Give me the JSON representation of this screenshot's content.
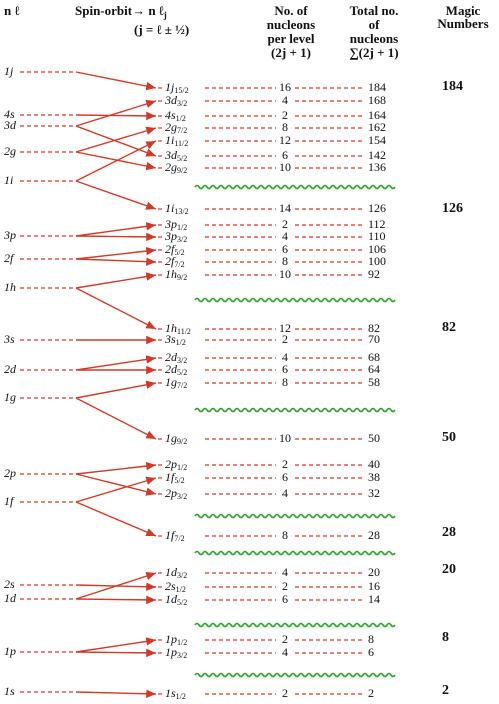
{
  "header": {
    "nl": "n ℓ",
    "spin_orbit": "Spin-orbit→",
    "nlj": "n ℓ",
    "nlj_sub": "j",
    "jrule": "(j = ℓ ± ½)",
    "per_level": [
      "No. of",
      "nucleons",
      "per level",
      "(2j + 1)"
    ],
    "total": [
      "Total no.",
      "of",
      "nucleons",
      "∑(2j + 1)"
    ],
    "magic": [
      "Magic",
      "Numbers"
    ]
  },
  "left_levels": [
    "1j",
    "4s",
    "3d",
    "2g",
    "1i",
    "3p",
    "2f",
    "1h",
    "3s",
    "2d",
    "1g",
    "2p",
    "1f",
    "2s",
    "1d",
    "1p",
    "1s"
  ],
  "right_levels": [
    {
      "orbital": "1j",
      "j": "15/2",
      "count": 16,
      "total": 184
    },
    {
      "orbital": "3d",
      "j": "3/2",
      "count": 4,
      "total": 168
    },
    {
      "orbital": "4s",
      "j": "1/2",
      "count": 2,
      "total": 164
    },
    {
      "orbital": "2g",
      "j": "7/2",
      "count": 8,
      "total": 162
    },
    {
      "orbital": "1i",
      "j": "11/2",
      "count": 12,
      "total": 154
    },
    {
      "orbital": "3d",
      "j": "5/2",
      "count": 6,
      "total": 142
    },
    {
      "orbital": "2g",
      "j": "9/2",
      "count": 10,
      "total": 136
    },
    {
      "orbital": "1i",
      "j": "13/2",
      "count": 14,
      "total": 126
    },
    {
      "orbital": "3p",
      "j": "1/2",
      "count": 2,
      "total": 112
    },
    {
      "orbital": "3p",
      "j": "3/2",
      "count": 4,
      "total": 110
    },
    {
      "orbital": "2f",
      "j": "5/2",
      "count": 6,
      "total": 106
    },
    {
      "orbital": "2f",
      "j": "7/2",
      "count": 8,
      "total": 100
    },
    {
      "orbital": "1h",
      "j": "9/2",
      "count": 10,
      "total": 92
    },
    {
      "orbital": "1h",
      "j": "11/2",
      "count": 12,
      "total": 82
    },
    {
      "orbital": "3s",
      "j": "1/2",
      "count": 2,
      "total": 70
    },
    {
      "orbital": "2d",
      "j": "3/2",
      "count": 4,
      "total": 68
    },
    {
      "orbital": "2d",
      "j": "5/2",
      "count": 6,
      "total": 64
    },
    {
      "orbital": "1g",
      "j": "7/2",
      "count": 8,
      "total": 58
    },
    {
      "orbital": "1g",
      "j": "9/2",
      "count": 10,
      "total": 50
    },
    {
      "orbital": "2p",
      "j": "1/2",
      "count": 2,
      "total": 40
    },
    {
      "orbital": "1f",
      "j": "5/2",
      "count": 6,
      "total": 38
    },
    {
      "orbital": "2p",
      "j": "3/2",
      "count": 4,
      "total": 32
    },
    {
      "orbital": "1f",
      "j": "7/2",
      "count": 8,
      "total": 28
    },
    {
      "orbital": "1d",
      "j": "3/2",
      "count": 4,
      "total": 20
    },
    {
      "orbital": "2s",
      "j": "1/2",
      "count": 2,
      "total": 16
    },
    {
      "orbital": "1d",
      "j": "5/2",
      "count": 6,
      "total": 14
    },
    {
      "orbital": "1p",
      "j": "1/2",
      "count": 2,
      "total": 8
    },
    {
      "orbital": "1p",
      "j": "3/2",
      "count": 4,
      "total": 6
    },
    {
      "orbital": "1s",
      "j": "1/2",
      "count": 2,
      "total": 2
    }
  ],
  "magic_numbers": [
    184,
    126,
    82,
    50,
    28,
    20,
    8,
    2
  ]
}
